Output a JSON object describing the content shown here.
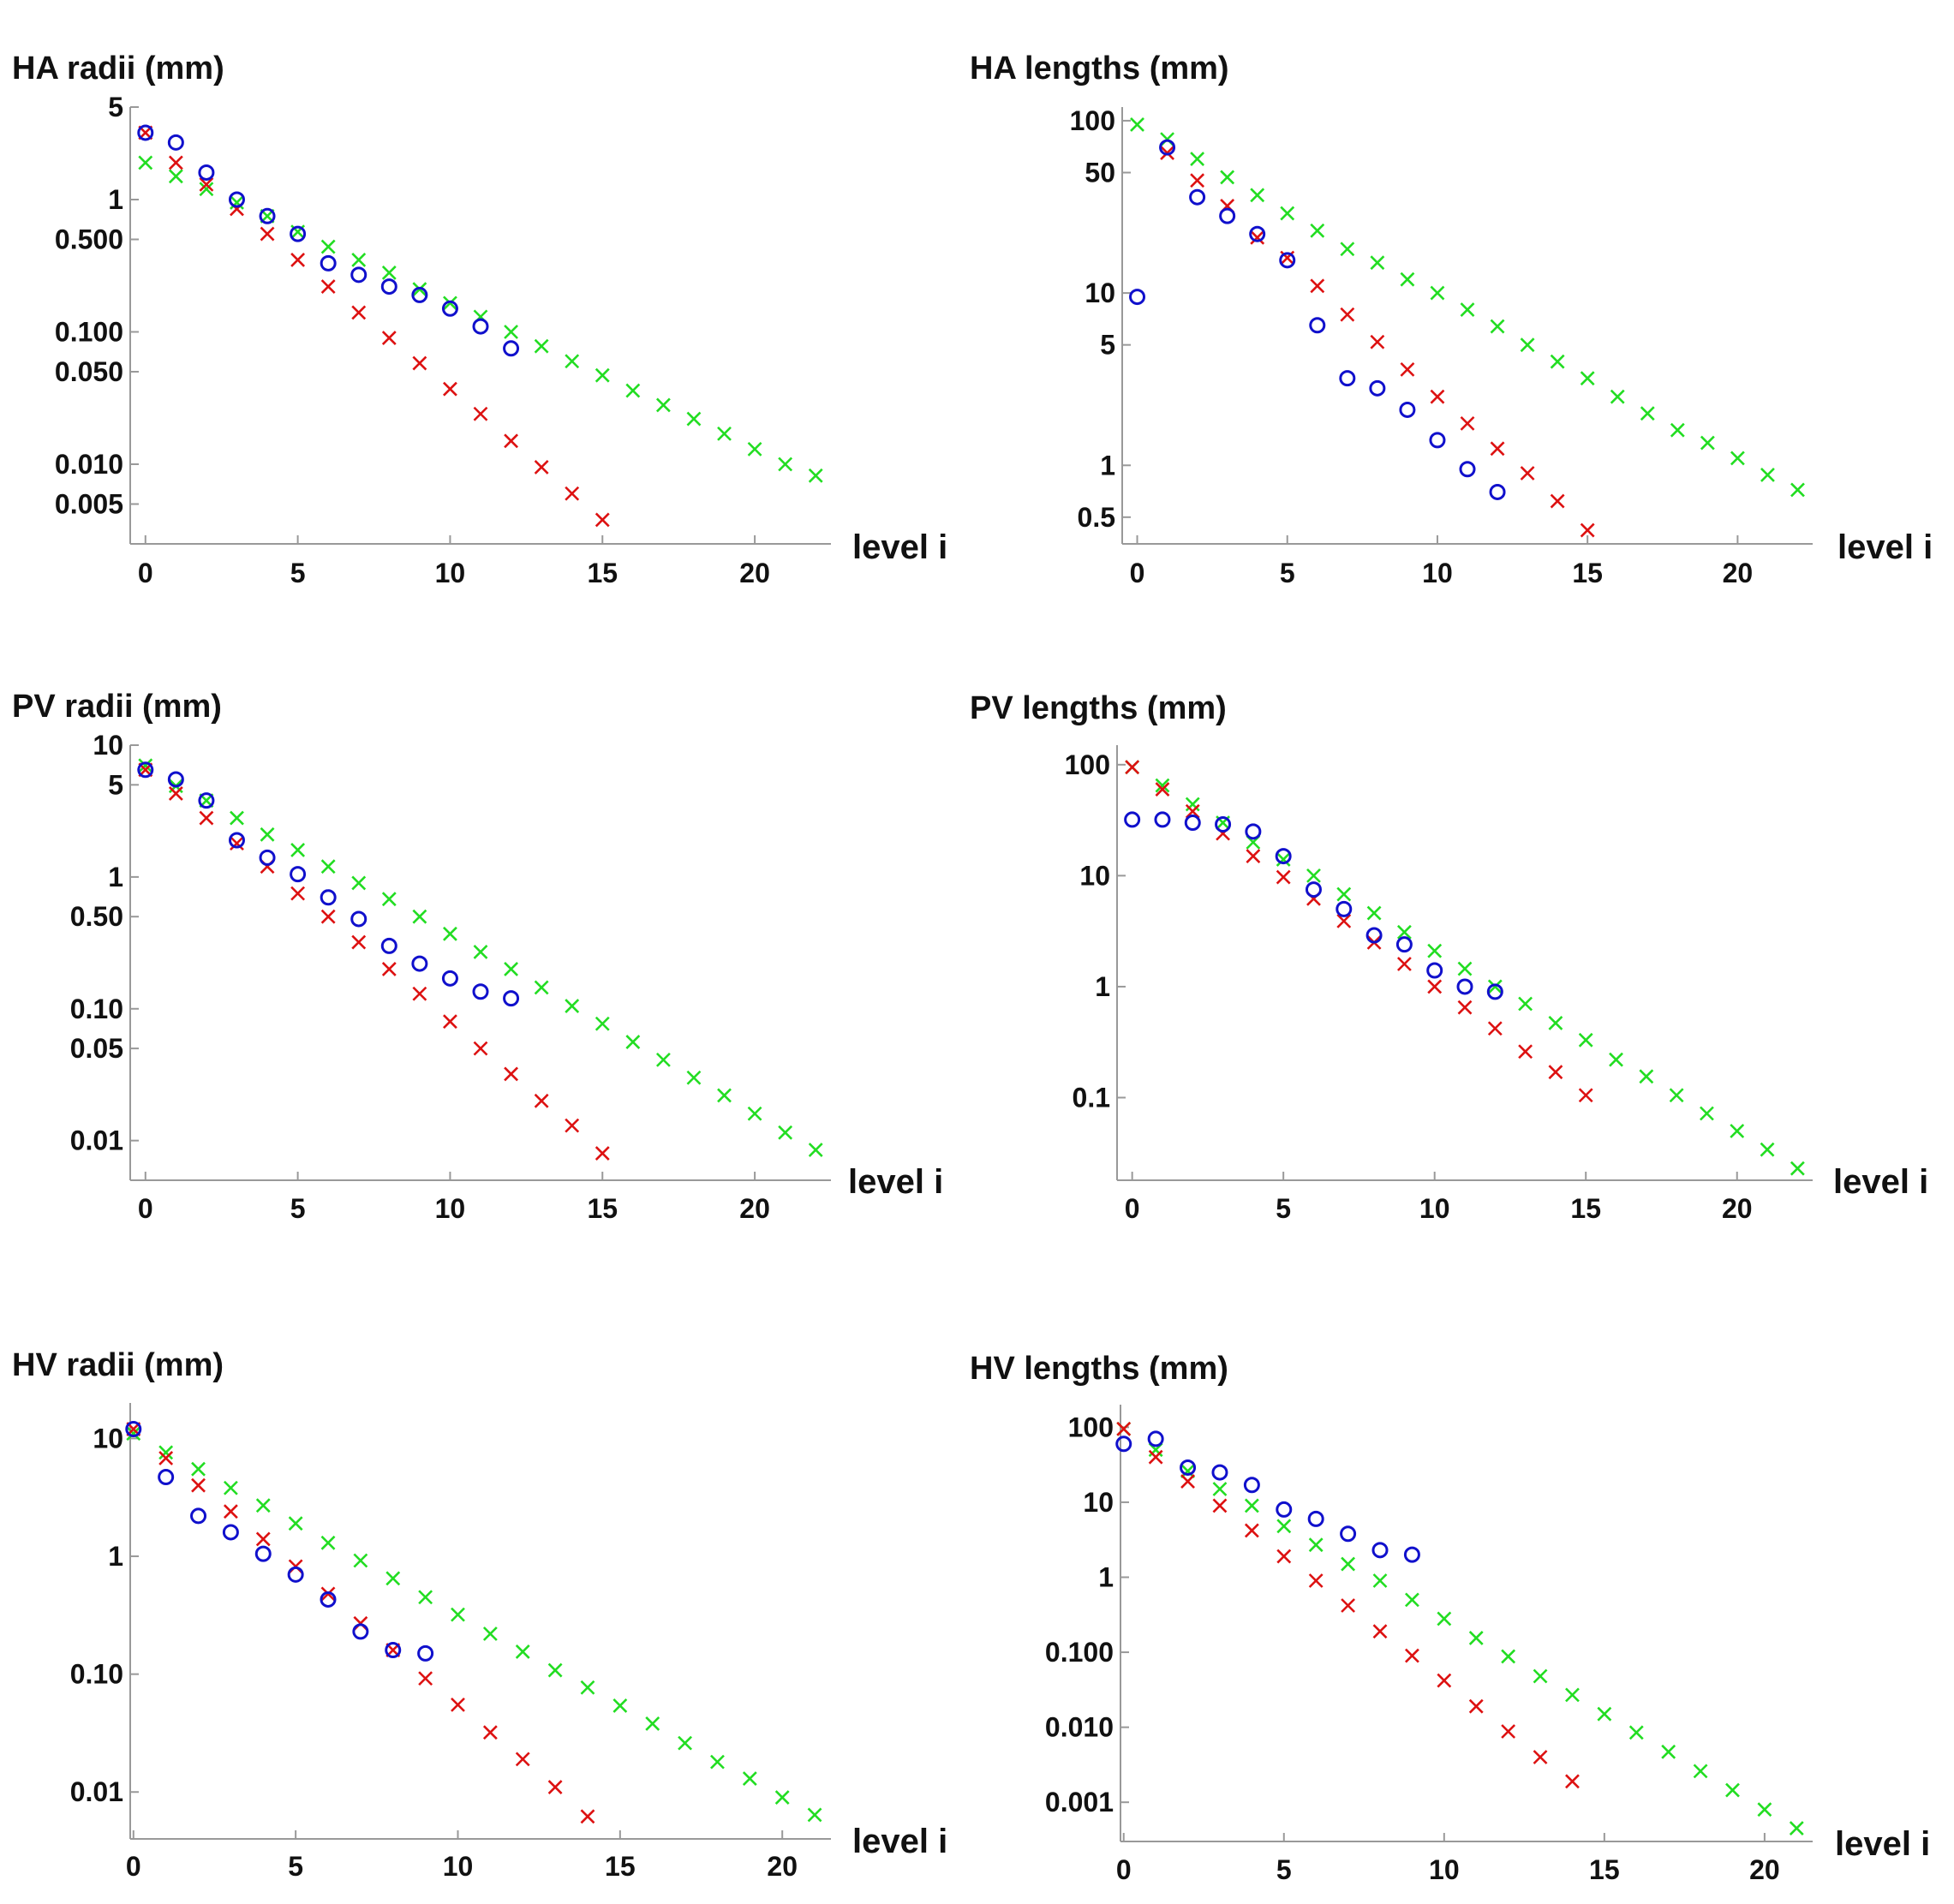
{
  "colors": {
    "blue_circle": "#1010cc",
    "red_x": "#dd1111",
    "green_x": "#22dd22",
    "axis": "#999999",
    "text": "#111111"
  },
  "series_names": [
    "blue-circles",
    "red-crosses",
    "green-crosses"
  ],
  "chart_data": [
    {
      "type": "scatter",
      "scale": "log-y",
      "title": "HA radii (mm)",
      "xlabel": "level i",
      "xlim": [
        -0.5,
        22.5
      ],
      "ylim": [
        0.0025,
        5
      ],
      "x_ticks": [
        0,
        5,
        10,
        15,
        20
      ],
      "y_ticks": [
        {
          "v": 5,
          "label": "5"
        },
        {
          "v": 1,
          "label": "1"
        },
        {
          "v": 0.5,
          "label": "0.500"
        },
        {
          "v": 0.1,
          "label": "0.100"
        },
        {
          "v": 0.05,
          "label": "0.050"
        },
        {
          "v": 0.01,
          "label": "0.010"
        },
        {
          "v": 0.005,
          "label": "0.005"
        }
      ],
      "series": [
        {
          "name": "blue-circles",
          "marker": "circle",
          "x": [
            0,
            1,
            2,
            3,
            4,
            5,
            6,
            7,
            8,
            9,
            10,
            11,
            12
          ],
          "y": [
            3.2,
            2.7,
            1.6,
            1.0,
            0.75,
            0.55,
            0.33,
            0.27,
            0.22,
            0.19,
            0.15,
            0.11,
            0.075
          ]
        },
        {
          "name": "red-crosses",
          "marker": "x",
          "x": [
            0,
            1,
            2,
            3,
            4,
            5,
            6,
            7,
            8,
            9,
            10,
            11,
            12,
            13,
            14,
            15
          ],
          "y": [
            3.2,
            1.9,
            1.3,
            0.85,
            0.55,
            0.35,
            0.22,
            0.14,
            0.09,
            0.058,
            0.037,
            0.024,
            0.015,
            0.0095,
            0.006,
            0.0038
          ]
        },
        {
          "name": "green-crosses",
          "marker": "x",
          "x": [
            0,
            1,
            2,
            3,
            4,
            5,
            6,
            7,
            8,
            9,
            10,
            11,
            12,
            13,
            14,
            15,
            16,
            17,
            18,
            19,
            20,
            21,
            22
          ],
          "y": [
            1.9,
            1.5,
            1.2,
            0.95,
            0.75,
            0.57,
            0.44,
            0.35,
            0.28,
            0.21,
            0.165,
            0.13,
            0.1,
            0.078,
            0.06,
            0.047,
            0.036,
            0.028,
            0.022,
            0.017,
            0.013,
            0.01,
            0.0082
          ]
        }
      ]
    },
    {
      "type": "scatter",
      "scale": "log-y",
      "title": "HA lengths (mm)",
      "xlabel": "level i",
      "xlim": [
        -0.5,
        22.5
      ],
      "ylim": [
        0.35,
        120
      ],
      "x_ticks": [
        0,
        5,
        10,
        15,
        20
      ],
      "y_ticks": [
        {
          "v": 100,
          "label": "100"
        },
        {
          "v": 50,
          "label": "50"
        },
        {
          "v": 10,
          "label": "10"
        },
        {
          "v": 5,
          "label": "5"
        },
        {
          "v": 1,
          "label": "1"
        },
        {
          "v": 0.5,
          "label": "0.5"
        }
      ],
      "series": [
        {
          "name": "blue-circles",
          "marker": "circle",
          "x": [
            0,
            1,
            2,
            3,
            4,
            5,
            6,
            7,
            8,
            9,
            10,
            11,
            12
          ],
          "y": [
            9.5,
            70,
            36,
            28,
            22,
            15.5,
            6.5,
            3.2,
            2.8,
            2.1,
            1.4,
            0.95,
            0.7
          ]
        },
        {
          "name": "red-crosses",
          "marker": "x",
          "x": [
            1,
            2,
            3,
            4,
            5,
            6,
            7,
            8,
            9,
            10,
            11,
            12,
            13,
            14,
            15
          ],
          "y": [
            65,
            45,
            32,
            21,
            16,
            11,
            7.5,
            5.2,
            3.6,
            2.5,
            1.75,
            1.25,
            0.9,
            0.62,
            0.42
          ]
        },
        {
          "name": "green-crosses",
          "marker": "x",
          "x": [
            0,
            1,
            2,
            3,
            4,
            5,
            6,
            7,
            8,
            9,
            10,
            11,
            12,
            13,
            14,
            15,
            16,
            17,
            18,
            19,
            20,
            21,
            22
          ],
          "y": [
            95,
            78,
            60,
            47,
            37,
            29,
            23,
            18,
            15,
            12,
            10,
            8,
            6.4,
            5,
            4,
            3.2,
            2.5,
            2,
            1.6,
            1.35,
            1.1,
            0.88,
            0.72
          ]
        }
      ]
    },
    {
      "type": "scatter",
      "scale": "log-y",
      "title": "PV radii (mm)",
      "xlabel": "level i",
      "xlim": [
        -0.5,
        22.5
      ],
      "ylim": [
        0.005,
        10
      ],
      "x_ticks": [
        0,
        5,
        10,
        15,
        20
      ],
      "y_ticks": [
        {
          "v": 10,
          "label": "10"
        },
        {
          "v": 5,
          "label": "5"
        },
        {
          "v": 1,
          "label": "1"
        },
        {
          "v": 0.5,
          "label": "0.50"
        },
        {
          "v": 0.1,
          "label": "0.10"
        },
        {
          "v": 0.05,
          "label": "0.05"
        },
        {
          "v": 0.01,
          "label": "0.01"
        }
      ],
      "series": [
        {
          "name": "blue-circles",
          "marker": "circle",
          "x": [
            0,
            1,
            2,
            3,
            4,
            5,
            6,
            7,
            8,
            9,
            10,
            11,
            12
          ],
          "y": [
            6.5,
            5.5,
            3.8,
            1.9,
            1.4,
            1.05,
            0.7,
            0.48,
            0.3,
            0.22,
            0.17,
            0.135,
            0.12
          ]
        },
        {
          "name": "red-crosses",
          "marker": "x",
          "x": [
            0,
            1,
            2,
            3,
            4,
            5,
            6,
            7,
            8,
            9,
            10,
            11,
            12,
            13,
            14,
            15
          ],
          "y": [
            6.5,
            4.3,
            2.8,
            1.8,
            1.2,
            0.75,
            0.5,
            0.32,
            0.2,
            0.13,
            0.08,
            0.05,
            0.032,
            0.02,
            0.013,
            0.008
          ]
        },
        {
          "name": "green-crosses",
          "marker": "x",
          "x": [
            0,
            1,
            2,
            3,
            4,
            5,
            6,
            7,
            8,
            9,
            10,
            11,
            12,
            13,
            14,
            15,
            16,
            17,
            18,
            19,
            20,
            21,
            22
          ],
          "y": [
            7,
            4.9,
            3.8,
            2.8,
            2.1,
            1.6,
            1.2,
            0.9,
            0.68,
            0.5,
            0.37,
            0.27,
            0.2,
            0.145,
            0.105,
            0.077,
            0.056,
            0.041,
            0.03,
            0.022,
            0.016,
            0.0115,
            0.0085
          ]
        }
      ]
    },
    {
      "type": "scatter",
      "scale": "log-y",
      "title": "PV lengths (mm)",
      "xlabel": "level i",
      "xlim": [
        -0.5,
        22.5
      ],
      "ylim": [
        0.018,
        150
      ],
      "x_ticks": [
        0,
        5,
        10,
        15,
        20
      ],
      "y_ticks": [
        {
          "v": 100,
          "label": "100"
        },
        {
          "v": 10,
          "label": "10"
        },
        {
          "v": 1,
          "label": "1"
        },
        {
          "v": 0.1,
          "label": "0.1"
        }
      ],
      "series": [
        {
          "name": "blue-circles",
          "marker": "circle",
          "x": [
            0,
            1,
            2,
            3,
            4,
            5,
            6,
            7,
            8,
            9,
            10,
            11,
            12
          ],
          "y": [
            32,
            32,
            30,
            29,
            25,
            15,
            7.5,
            5,
            2.9,
            2.4,
            1.4,
            1.0,
            0.9
          ]
        },
        {
          "name": "red-crosses",
          "marker": "x",
          "x": [
            0,
            1,
            2,
            3,
            4,
            5,
            6,
            7,
            8,
            9,
            10,
            11,
            12,
            13,
            14,
            15
          ],
          "y": [
            95,
            60,
            38,
            24,
            15,
            9.7,
            6.2,
            3.9,
            2.5,
            1.6,
            1.0,
            0.65,
            0.42,
            0.26,
            0.17,
            0.105
          ]
        },
        {
          "name": "green-crosses",
          "marker": "x",
          "x": [
            0,
            1,
            2,
            3,
            4,
            5,
            6,
            7,
            8,
            9,
            10,
            11,
            12,
            13,
            14,
            15,
            16,
            17,
            18,
            19,
            20,
            21,
            22
          ],
          "y": [
            95,
            65,
            44,
            30,
            20,
            14,
            10,
            6.8,
            4.6,
            3.1,
            2.1,
            1.45,
            1.0,
            0.7,
            0.47,
            0.33,
            0.22,
            0.155,
            0.105,
            0.072,
            0.05,
            0.034,
            0.023
          ]
        }
      ]
    },
    {
      "type": "scatter",
      "scale": "log-y",
      "title": "HV radii (mm)",
      "xlabel": "level i",
      "xlim": [
        -0.1,
        21.5
      ],
      "ylim": [
        0.004,
        20
      ],
      "x_ticks": [
        0,
        5,
        10,
        15,
        20
      ],
      "y_ticks": [
        {
          "v": 10,
          "label": "10"
        },
        {
          "v": 1,
          "label": "1"
        },
        {
          "v": 0.1,
          "label": "0.10"
        },
        {
          "v": 0.01,
          "label": "0.01"
        }
      ],
      "series": [
        {
          "name": "blue-circles",
          "marker": "circle",
          "x": [
            0,
            1,
            2,
            3,
            4,
            5,
            6,
            7,
            8,
            9
          ],
          "y": [
            12,
            4.7,
            2.2,
            1.6,
            1.05,
            0.7,
            0.43,
            0.23,
            0.16,
            0.15
          ]
        },
        {
          "name": "red-crosses",
          "marker": "x",
          "x": [
            0,
            1,
            2,
            3,
            4,
            5,
            6,
            7,
            8,
            9,
            10,
            11,
            12,
            13,
            14
          ],
          "y": [
            12,
            6.8,
            4.0,
            2.4,
            1.4,
            0.82,
            0.48,
            0.27,
            0.16,
            0.092,
            0.055,
            0.032,
            0.019,
            0.011,
            0.0062
          ]
        },
        {
          "name": "green-crosses",
          "marker": "x",
          "x": [
            0,
            1,
            2,
            3,
            4,
            5,
            6,
            7,
            8,
            9,
            10,
            11,
            12,
            13,
            14,
            15,
            16,
            17,
            18,
            19,
            20,
            21
          ],
          "y": [
            11,
            7.6,
            5.5,
            3.8,
            2.7,
            1.9,
            1.3,
            0.92,
            0.65,
            0.45,
            0.32,
            0.22,
            0.155,
            0.108,
            0.077,
            0.054,
            0.038,
            0.026,
            0.018,
            0.013,
            0.009,
            0.0064
          ]
        }
      ]
    },
    {
      "type": "scatter",
      "scale": "log-y",
      "title": "HV lengths (mm)",
      "xlabel": "level i",
      "xlim": [
        -0.1,
        21.5
      ],
      "ylim": [
        0.0003,
        200
      ],
      "x_ticks": [
        0,
        5,
        10,
        15,
        20
      ],
      "y_ticks": [
        {
          "v": 100,
          "label": "100"
        },
        {
          "v": 10,
          "label": "10"
        },
        {
          "v": 1,
          "label": "1"
        },
        {
          "v": 0.1,
          "label": "0.100"
        },
        {
          "v": 0.01,
          "label": "0.010"
        },
        {
          "v": 0.001,
          "label": "0.001"
        }
      ],
      "series": [
        {
          "name": "blue-circles",
          "marker": "circle",
          "x": [
            0,
            1,
            2,
            3,
            4,
            5,
            6,
            7,
            8,
            9
          ],
          "y": [
            60,
            70,
            29,
            25,
            17,
            8,
            6,
            3.8,
            2.3,
            2.0
          ]
        },
        {
          "name": "red-crosses",
          "marker": "x",
          "x": [
            0,
            1,
            2,
            3,
            4,
            5,
            6,
            7,
            8,
            9,
            10,
            11,
            12,
            13,
            14
          ],
          "y": [
            95,
            40,
            19,
            9,
            4.2,
            1.9,
            0.9,
            0.42,
            0.19,
            0.09,
            0.042,
            0.019,
            0.0088,
            0.004,
            0.0019
          ]
        },
        {
          "name": "green-crosses",
          "marker": "x",
          "x": [
            0,
            1,
            2,
            3,
            4,
            5,
            6,
            7,
            8,
            9,
            10,
            11,
            12,
            13,
            14,
            15,
            16,
            17,
            18,
            19,
            20,
            21
          ],
          "y": [
            95,
            50,
            26,
            15,
            9,
            4.8,
            2.7,
            1.5,
            0.9,
            0.5,
            0.28,
            0.155,
            0.088,
            0.048,
            0.027,
            0.015,
            0.0085,
            0.0047,
            0.0026,
            0.00145,
            0.0008,
            0.00045
          ]
        }
      ]
    }
  ]
}
